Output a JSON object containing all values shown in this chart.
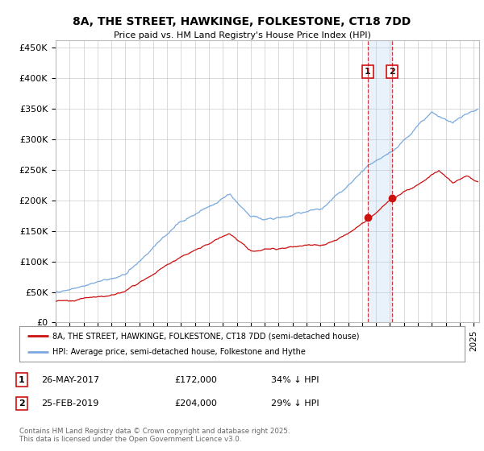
{
  "title": "8A, THE STREET, HAWKINGE, FOLKESTONE, CT18 7DD",
  "subtitle": "Price paid vs. HM Land Registry's House Price Index (HPI)",
  "ylim": [
    0,
    462000
  ],
  "xlim_start": 1995.0,
  "xlim_end": 2025.4,
  "hpi_color": "#7aaadd",
  "price_color": "#cc1111",
  "sale1_date": 2017.4,
  "sale1_price": 172000,
  "sale2_date": 2019.15,
  "sale2_price": 204000,
  "legend1_text": "8A, THE STREET, HAWKINGE, FOLKESTONE, CT18 7DD (semi-detached house)",
  "legend2_text": "HPI: Average price, semi-detached house, Folkestone and Hythe",
  "footer": "Contains HM Land Registry data © Crown copyright and database right 2025.\nThis data is licensed under the Open Government Licence v3.0.",
  "yticks": [
    0,
    50000,
    100000,
    150000,
    200000,
    250000,
    300000,
    350000,
    400000,
    450000
  ],
  "ytick_labels": [
    "£0",
    "£50K",
    "£100K",
    "£150K",
    "£200K",
    "£250K",
    "£300K",
    "£350K",
    "£400K",
    "£450K"
  ],
  "background_color": "#ffffff",
  "grid_color": "#cccccc"
}
